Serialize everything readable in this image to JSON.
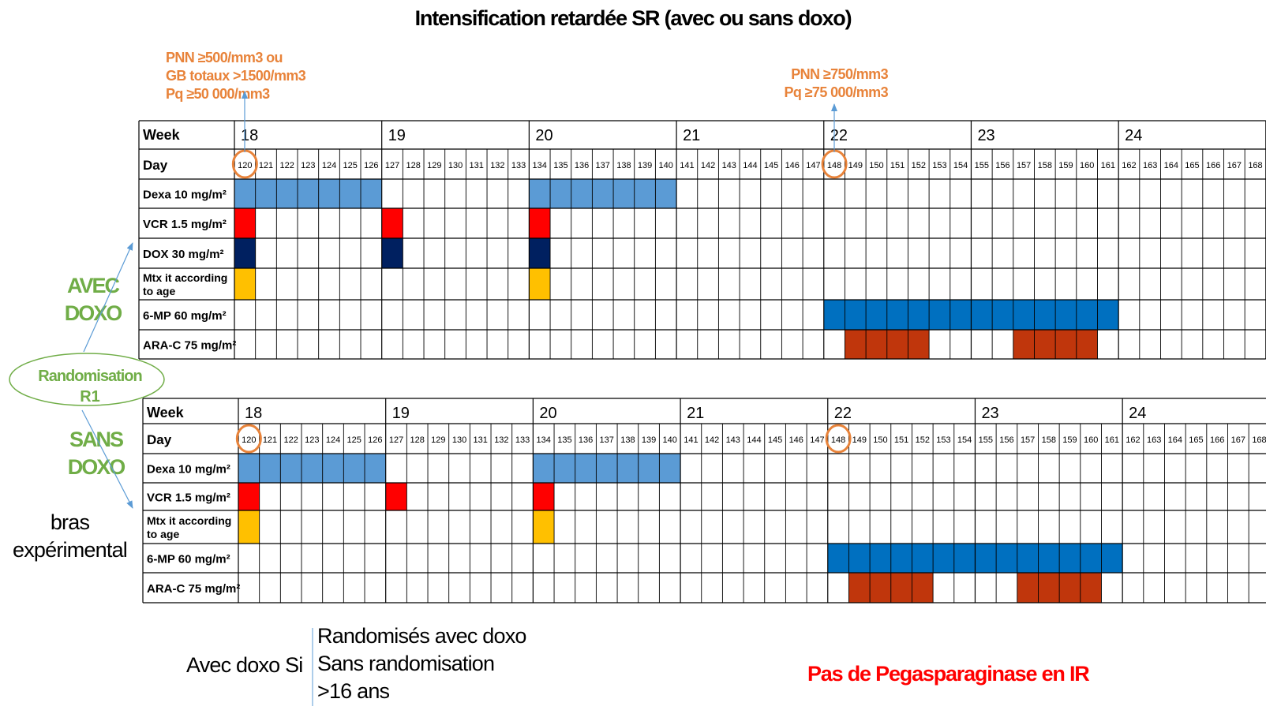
{
  "title": "Intensification retardée SR (avec ou sans doxo)",
  "threshold_left": [
    "PNN ≥500/mm3 ou",
    "GB totaux >1500/mm3",
    "Pq ≥50 000/mm3"
  ],
  "threshold_right": [
    "PNN ≥750/mm3",
    "Pq ≥75 000/mm3"
  ],
  "arm_avec": [
    "AVEC",
    "DOXO"
  ],
  "arm_sans": [
    "SANS",
    "DOXO"
  ],
  "randomisation": [
    "Randomisation",
    "R1"
  ],
  "bras": [
    "bras",
    "expérimental"
  ],
  "avec_doxo_si": "Avec doxo Si",
  "criteria": [
    "Randomisés avec doxo",
    "Sans randomisation",
    ">16 ans"
  ],
  "pas_de_pegasparaginase": "Pas de Pegasparaginase en IR",
  "colors": {
    "dexa": "#5b9bd5",
    "vcr": "#ff0000",
    "dox": "#002060",
    "mtx": "#ffc000",
    "mp6": "#0070c0",
    "arac": "#c0360c",
    "orange": "#e8833a",
    "green": "#70ad47",
    "arrow": "#5b9bd5"
  },
  "chart_data": {
    "type": "table",
    "days": [
      120,
      121,
      122,
      123,
      124,
      125,
      126,
      127,
      128,
      129,
      130,
      131,
      132,
      133,
      134,
      135,
      136,
      137,
      138,
      139,
      140,
      141,
      142,
      143,
      144,
      145,
      146,
      147,
      148,
      149,
      150,
      151,
      152,
      153,
      154,
      155,
      156,
      157,
      158,
      159,
      160,
      161,
      162,
      163,
      164,
      165,
      166,
      167,
      168
    ],
    "weeks": [
      {
        "label": "Week",
        "number": "18",
        "start_day": 120
      },
      {
        "number": "19",
        "start_day": 127
      },
      {
        "number": "20",
        "start_day": 134
      },
      {
        "number": "21",
        "start_day": 141
      },
      {
        "number": "22",
        "start_day": 148
      },
      {
        "number": "23",
        "start_day": 155
      },
      {
        "number": "24",
        "start_day": 162
      }
    ],
    "day_label": "Day",
    "highlighted_days": [
      120,
      148
    ],
    "tables": [
      {
        "arm": "AVEC DOXO",
        "rows": [
          {
            "label": "Dexa 10 mg/m²",
            "color": "dexa",
            "days": [
              120,
              121,
              122,
              123,
              124,
              125,
              126,
              134,
              135,
              136,
              137,
              138,
              139,
              140
            ]
          },
          {
            "label": "VCR 1.5 mg/m²",
            "color": "vcr",
            "days": [
              120,
              127,
              134
            ]
          },
          {
            "label": "DOX 30 mg/m²",
            "color": "dox",
            "days": [
              120,
              127,
              134
            ]
          },
          {
            "label": "Mtx it according to age",
            "color": "mtx",
            "days": [
              120,
              134
            ]
          },
          {
            "label": "6-MP 60 mg/m²",
            "color": "mp6",
            "days": [
              148,
              149,
              150,
              151,
              152,
              153,
              154,
              155,
              156,
              157,
              158,
              159,
              160,
              161
            ]
          },
          {
            "label": "ARA-C 75 mg/m²",
            "color": "arac",
            "days": [
              149,
              150,
              151,
              152,
              157,
              158,
              159,
              160
            ]
          }
        ]
      },
      {
        "arm": "SANS DOXO",
        "rows": [
          {
            "label": "Dexa 10 mg/m²",
            "color": "dexa",
            "days": [
              120,
              121,
              122,
              123,
              124,
              125,
              126,
              134,
              135,
              136,
              137,
              138,
              139,
              140
            ]
          },
          {
            "label": "VCR 1.5 mg/m²",
            "color": "vcr",
            "days": [
              120,
              127,
              134
            ]
          },
          {
            "label": "Mtx it according to age",
            "color": "mtx",
            "days": [
              120,
              134
            ]
          },
          {
            "label": "6-MP 60 mg/m²",
            "color": "mp6",
            "days": [
              148,
              149,
              150,
              151,
              152,
              153,
              154,
              155,
              156,
              157,
              158,
              159,
              160,
              161
            ]
          },
          {
            "label": "ARA-C 75 mg/m²",
            "color": "arac",
            "days": [
              149,
              150,
              151,
              152,
              157,
              158,
              159,
              160
            ]
          }
        ]
      }
    ]
  }
}
